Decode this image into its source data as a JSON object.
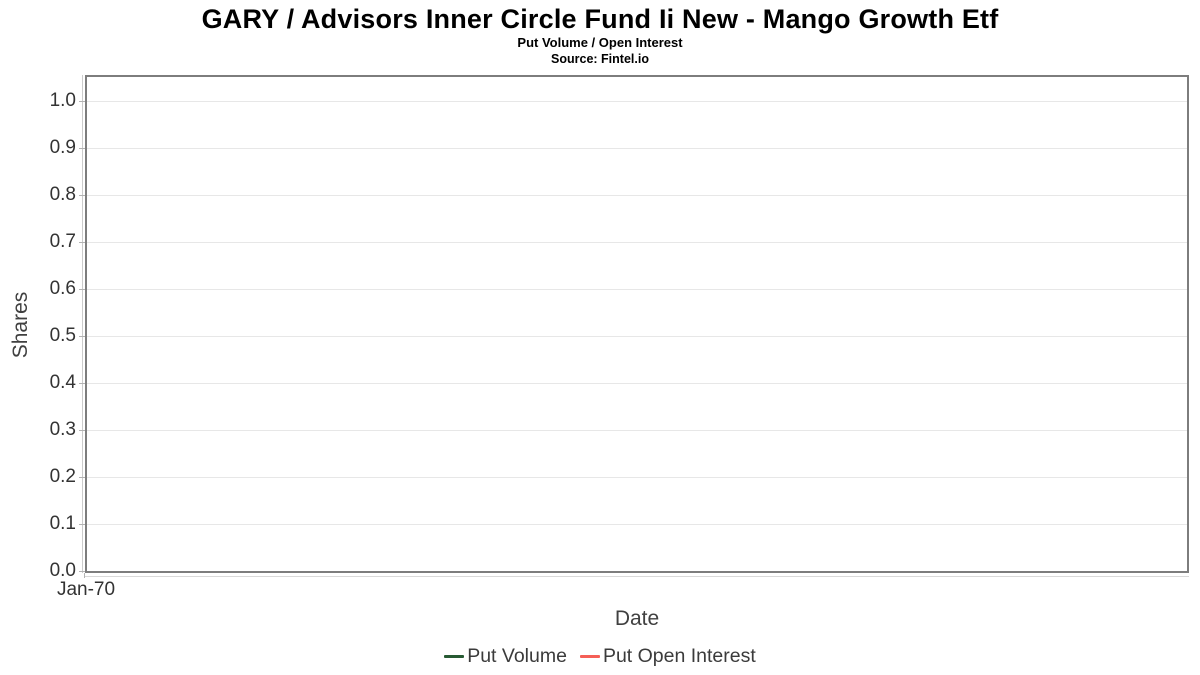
{
  "header": {
    "title": "GARY / Advisors Inner Circle Fund Ii New - Mango Growth Etf",
    "subtitle": "Put Volume / Open Interest",
    "source": "Source: Fintel.io"
  },
  "chart_data": {
    "type": "line",
    "title": "GARY / Advisors Inner Circle Fund Ii New - Mango Growth Etf",
    "subtitle": "Put Volume / Open Interest",
    "source": "Source: Fintel.io",
    "xlabel": "Date",
    "ylabel": "Shares",
    "ylim": [
      0.0,
      1.05
    ],
    "yticks": [
      "1.0",
      "0.9",
      "0.8",
      "0.7",
      "0.6",
      "0.5",
      "0.4",
      "0.3",
      "0.2",
      "0.1",
      "0.0"
    ],
    "xticks": [
      "Jan-70"
    ],
    "grid": true,
    "legend_position": "bottom",
    "series": [
      {
        "name": "Put Volume",
        "color": "#275a33",
        "x": [],
        "values": []
      },
      {
        "name": "Put Open Interest",
        "color": "#f55f57",
        "x": [],
        "values": []
      }
    ]
  },
  "colors": {
    "plot_border": "#7d7d7d",
    "gridline": "#e7e7e7",
    "tick": "#b3b3b3",
    "tick_label": "#333333",
    "axis_title": "#404040",
    "put_volume": "#275a33",
    "put_open_interest": "#f55f57"
  }
}
